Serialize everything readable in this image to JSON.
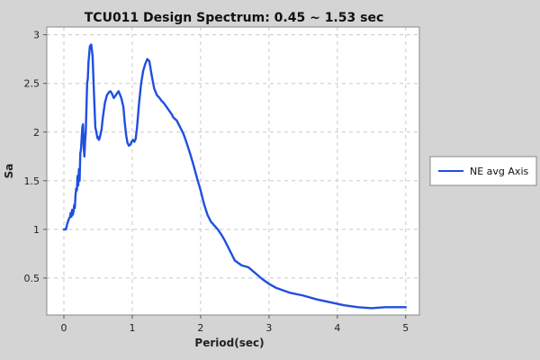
{
  "chart_data": {
    "type": "line",
    "title": "TCU011 Design Spectrum: 0.45 ~ 1.53 sec",
    "xlabel": "Period(sec)",
    "ylabel": "Sa",
    "xlim": [
      -0.25,
      5.2
    ],
    "ylim": [
      0.12,
      3.08
    ],
    "xticks": [
      0,
      1,
      2,
      3,
      4,
      5
    ],
    "yticks": [
      0.5,
      1,
      1.5,
      2,
      2.5,
      3
    ],
    "xtick_labels": [
      "0",
      "1",
      "2",
      "3",
      "4",
      "5"
    ],
    "ytick_labels": [
      "0.5",
      "1",
      "1.5",
      "2",
      "2.5",
      "3"
    ],
    "grid": true,
    "legend_position": "right",
    "series": [
      {
        "name": "NE avg Axis",
        "color": "#1f4fe0",
        "x": [
          0.0,
          0.03,
          0.05,
          0.07,
          0.09,
          0.1,
          0.11,
          0.12,
          0.13,
          0.14,
          0.15,
          0.16,
          0.17,
          0.18,
          0.19,
          0.2,
          0.21,
          0.22,
          0.23,
          0.24,
          0.25,
          0.27,
          0.28,
          0.29,
          0.3,
          0.31,
          0.32,
          0.33,
          0.34,
          0.35,
          0.36,
          0.38,
          0.4,
          0.42,
          0.44,
          0.46,
          0.48,
          0.49,
          0.5,
          0.51,
          0.52,
          0.53,
          0.55,
          0.57,
          0.6,
          0.63,
          0.66,
          0.68,
          0.7,
          0.73,
          0.76,
          0.8,
          0.84,
          0.87,
          0.89,
          0.91,
          0.93,
          0.95,
          0.97,
          0.99,
          1.01,
          1.03,
          1.05,
          1.07,
          1.1,
          1.13,
          1.16,
          1.19,
          1.22,
          1.25,
          1.28,
          1.32,
          1.36,
          1.4,
          1.43,
          1.46,
          1.49,
          1.52,
          1.55,
          1.58,
          1.6,
          1.65,
          1.7,
          1.75,
          1.8,
          1.85,
          1.9,
          1.95,
          2.0,
          2.05,
          2.1,
          2.15,
          2.2,
          2.25,
          2.3,
          2.35,
          2.4,
          2.45,
          2.5,
          2.6,
          2.7,
          2.8,
          2.9,
          3.0,
          3.1,
          3.3,
          3.5,
          3.7,
          3.9,
          4.1,
          4.3,
          4.5,
          4.7,
          4.85,
          5.0
        ],
        "values": [
          1.0,
          1.0,
          1.06,
          1.1,
          1.13,
          1.17,
          1.13,
          1.2,
          1.15,
          1.18,
          1.25,
          1.22,
          1.35,
          1.42,
          1.4,
          1.55,
          1.45,
          1.62,
          1.5,
          1.78,
          1.82,
          2.05,
          2.08,
          1.85,
          1.75,
          1.9,
          2.0,
          2.25,
          2.5,
          2.55,
          2.72,
          2.88,
          2.9,
          2.78,
          2.4,
          2.05,
          1.98,
          1.94,
          1.95,
          1.92,
          1.93,
          1.96,
          2.02,
          2.15,
          2.3,
          2.38,
          2.41,
          2.42,
          2.4,
          2.35,
          2.38,
          2.42,
          2.35,
          2.26,
          2.1,
          1.97,
          1.89,
          1.86,
          1.87,
          1.9,
          1.92,
          1.9,
          1.93,
          2.05,
          2.3,
          2.5,
          2.63,
          2.7,
          2.75,
          2.73,
          2.6,
          2.45,
          2.38,
          2.35,
          2.32,
          2.3,
          2.27,
          2.24,
          2.21,
          2.18,
          2.15,
          2.12,
          2.05,
          1.98,
          1.88,
          1.77,
          1.65,
          1.52,
          1.4,
          1.26,
          1.15,
          1.08,
          1.04,
          1.0,
          0.95,
          0.89,
          0.82,
          0.75,
          0.68,
          0.63,
          0.61,
          0.55,
          0.49,
          0.44,
          0.4,
          0.35,
          0.32,
          0.28,
          0.25,
          0.22,
          0.2,
          0.19,
          0.2,
          0.2,
          0.2
        ]
      }
    ]
  }
}
